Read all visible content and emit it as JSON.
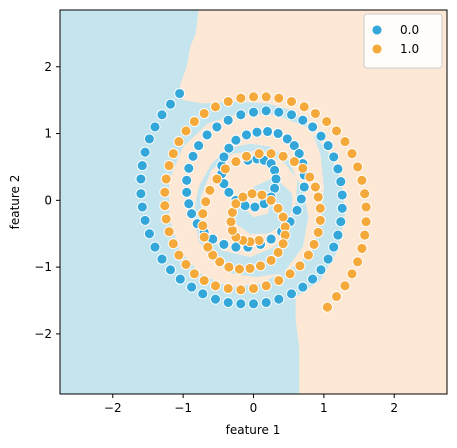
{
  "chart_data": {
    "type": "scatter",
    "title": "",
    "xlabel": "feature 1",
    "ylabel": "feature 2",
    "xlim": [
      -2.75,
      2.75
    ],
    "ylim": [
      -2.9,
      2.85
    ],
    "xticks": [
      -2,
      -1,
      0,
      1,
      2
    ],
    "yticks": [
      -2,
      -1,
      0,
      1,
      2
    ],
    "xtick_labels": [
      "−2",
      "−1",
      "0",
      "1",
      "2"
    ],
    "ytick_labels": [
      "−2",
      "−1",
      "0",
      "1",
      "2"
    ],
    "grid": false,
    "legend_position": "top-right",
    "decision_regions": {
      "description_colors": {
        "0.0": "#c5e5ee",
        "1.0": "#fde8d6"
      },
      "boundary": [
        [
          -0.78,
          2.85
        ],
        [
          -0.82,
          2.5
        ],
        [
          -0.9,
          2.3
        ],
        [
          -0.95,
          2.0
        ],
        [
          -1.05,
          1.7
        ],
        [
          -1.0,
          1.5
        ],
        [
          -0.7,
          1.45
        ],
        [
          -0.3,
          1.48
        ],
        [
          0.2,
          1.45
        ],
        [
          0.55,
          1.35
        ],
        [
          0.8,
          1.1
        ],
        [
          0.95,
          0.7
        ],
        [
          1.0,
          0.2
        ],
        [
          0.95,
          -0.3
        ],
        [
          0.85,
          -0.7
        ],
        [
          0.65,
          -0.95
        ],
        [
          0.35,
          -1.1
        ],
        [
          0.05,
          -1.15
        ],
        [
          -0.3,
          -1.1
        ],
        [
          -0.6,
          -0.9
        ],
        [
          -0.78,
          -0.6
        ],
        [
          -0.85,
          -0.2
        ],
        [
          -0.78,
          0.2
        ],
        [
          -0.6,
          0.55
        ],
        [
          -0.35,
          0.78
        ],
        [
          -0.05,
          0.85
        ],
        [
          0.25,
          0.8
        ],
        [
          0.5,
          0.6
        ],
        [
          0.62,
          0.3
        ],
        [
          0.6,
          -0.05
        ],
        [
          0.45,
          -0.35
        ],
        [
          0.2,
          -0.5
        ],
        [
          -0.05,
          -0.5
        ],
        [
          -0.25,
          -0.35
        ],
        [
          -0.28,
          -0.1
        ],
        [
          -0.1,
          0.1
        ],
        [
          0.1,
          0.15
        ],
        [
          0.25,
          0.0
        ],
        [
          0.2,
          -0.2
        ],
        [
          0.0,
          -0.25
        ],
        [
          -0.15,
          -0.1
        ],
        [
          0.0,
          0.2
        ],
        [
          0.3,
          0.35
        ],
        [
          0.55,
          0.1
        ],
        [
          0.55,
          -0.35
        ],
        [
          0.3,
          -0.7
        ],
        [
          -0.05,
          -0.85
        ],
        [
          -0.45,
          -0.75
        ],
        [
          -0.72,
          -0.4
        ],
        [
          -0.75,
          0.05
        ],
        [
          -0.6,
          0.45
        ],
        [
          -0.3,
          0.7
        ],
        [
          0.1,
          0.75
        ],
        [
          0.45,
          0.55
        ],
        [
          0.7,
          0.2
        ],
        [
          0.78,
          -0.25
        ],
        [
          0.7,
          -0.7
        ],
        [
          0.45,
          -1.05
        ],
        [
          0.1,
          -1.25
        ],
        [
          -0.35,
          -1.3
        ],
        [
          -0.75,
          -1.1
        ],
        [
          -1.05,
          -0.75
        ],
        [
          -1.2,
          -0.25
        ],
        [
          -1.2,
          0.3
        ],
        [
          -1.0,
          0.8
        ],
        [
          -0.65,
          1.15
        ],
        [
          -0.2,
          1.3
        ],
        [
          0.3,
          1.28
        ],
        [
          0.75,
          1.1
        ],
        [
          1.05,
          0.75
        ],
        [
          1.25,
          0.3
        ],
        [
          1.3,
          -0.2
        ],
        [
          1.2,
          -0.75
        ],
        [
          0.95,
          -1.2
        ],
        [
          0.6,
          -1.45
        ],
        [
          0.6,
          -1.8
        ],
        [
          0.65,
          -2.2
        ],
        [
          0.65,
          -2.9
        ]
      ]
    },
    "series": [
      {
        "name": "0.0",
        "color": "#33a7d9",
        "x": [
          -0.08,
          0.05,
          0.15,
          0.25,
          0.3,
          0.32,
          0.3,
          0.25,
          0.15,
          0.02,
          -0.12,
          -0.25,
          -0.35,
          -0.42,
          -0.45,
          -0.45,
          -0.42,
          -0.35,
          -0.25,
          -0.1,
          0.05,
          0.2,
          0.35,
          0.48,
          0.58,
          0.65,
          0.7,
          0.72,
          0.72,
          0.68,
          0.62,
          0.52,
          0.4,
          0.25,
          0.1,
          -0.08,
          -0.25,
          -0.42,
          -0.58,
          -0.7,
          -0.8,
          -0.88,
          -0.92,
          -0.95,
          -0.95,
          -0.92,
          -0.86,
          -0.78,
          -0.66,
          -0.52,
          -0.36,
          -0.18,
          0.0,
          0.18,
          0.36,
          0.54,
          0.7,
          0.84,
          0.96,
          1.06,
          1.14,
          1.2,
          1.24,
          1.26,
          1.26,
          1.24,
          1.2,
          1.14,
          1.06,
          0.96,
          0.84,
          0.7,
          0.54,
          0.36,
          0.18,
          0.0,
          -0.18,
          -0.36,
          -0.54,
          -0.72,
          -0.88,
          -1.04,
          -1.18,
          -1.3,
          -1.4,
          -1.48,
          -1.54,
          -1.58,
          -1.6,
          -1.6,
          -1.58,
          -1.54,
          -1.48,
          -1.4,
          -1.3,
          -1.18,
          -1.05
        ],
        "y": [
          0.6,
          0.62,
          0.6,
          0.55,
          0.45,
          0.32,
          0.18,
          0.05,
          -0.05,
          -0.1,
          -0.08,
          0.0,
          0.12,
          0.25,
          0.4,
          0.52,
          0.65,
          0.78,
          0.9,
          0.98,
          1.02,
          1.03,
          1.0,
          0.92,
          0.82,
          0.7,
          0.55,
          0.38,
          0.2,
          0.02,
          -0.15,
          -0.32,
          -0.47,
          -0.58,
          -0.66,
          -0.7,
          -0.7,
          -0.66,
          -0.58,
          -0.48,
          -0.35,
          -0.2,
          -0.05,
          0.12,
          0.3,
          0.48,
          0.66,
          0.82,
          0.98,
          1.1,
          1.2,
          1.28,
          1.32,
          1.34,
          1.32,
          1.28,
          1.2,
          1.1,
          0.96,
          0.82,
          0.65,
          0.47,
          0.28,
          0.08,
          -0.12,
          -0.32,
          -0.52,
          -0.7,
          -0.88,
          -1.04,
          -1.18,
          -1.3,
          -1.4,
          -1.48,
          -1.53,
          -1.55,
          -1.55,
          -1.53,
          -1.48,
          -1.4,
          -1.3,
          -1.18,
          -1.04,
          -0.88,
          -0.7,
          -0.5,
          -0.3,
          -0.1,
          0.1,
          0.32,
          0.52,
          0.72,
          0.92,
          1.1,
          1.28,
          1.44,
          1.6
        ]
      },
      {
        "name": "1.0",
        "color": "#f5a93b",
        "x": [
          0.08,
          -0.05,
          -0.15,
          -0.25,
          -0.3,
          -0.32,
          -0.3,
          -0.25,
          -0.15,
          -0.02,
          0.12,
          0.25,
          0.35,
          0.42,
          0.45,
          0.45,
          0.42,
          0.35,
          0.25,
          0.1,
          -0.05,
          -0.2,
          -0.35,
          -0.48,
          -0.58,
          -0.65,
          -0.7,
          -0.72,
          -0.72,
          -0.68,
          -0.62,
          -0.52,
          -0.4,
          -0.25,
          -0.1,
          0.08,
          0.25,
          0.42,
          0.58,
          0.7,
          0.8,
          0.88,
          0.92,
          0.95,
          0.95,
          0.92,
          0.86,
          0.78,
          0.66,
          0.52,
          0.36,
          0.18,
          0.0,
          -0.18,
          -0.36,
          -0.54,
          -0.7,
          -0.84,
          -0.96,
          -1.06,
          -1.14,
          -1.2,
          -1.24,
          -1.26,
          -1.26,
          -1.24,
          -1.2,
          -1.14,
          -1.06,
          -0.96,
          -0.84,
          -0.7,
          -0.54,
          -0.36,
          -0.18,
          0.0,
          0.18,
          0.36,
          0.54,
          0.72,
          0.88,
          1.04,
          1.18,
          1.3,
          1.4,
          1.48,
          1.54,
          1.58,
          1.6,
          1.6,
          1.58,
          1.54,
          1.48,
          1.4,
          1.3,
          1.18,
          1.05
        ],
        "y": [
          -0.6,
          -0.62,
          -0.6,
          -0.55,
          -0.45,
          -0.32,
          -0.18,
          -0.05,
          0.05,
          0.1,
          0.08,
          0.0,
          -0.12,
          -0.25,
          -0.4,
          -0.52,
          -0.65,
          -0.78,
          -0.9,
          -0.98,
          -1.02,
          -1.03,
          -1.0,
          -0.92,
          -0.82,
          -0.7,
          -0.55,
          -0.38,
          -0.2,
          -0.02,
          0.15,
          0.32,
          0.47,
          0.58,
          0.66,
          0.7,
          0.7,
          0.66,
          0.58,
          0.48,
          0.35,
          0.2,
          0.05,
          -0.12,
          -0.3,
          -0.48,
          -0.66,
          -0.82,
          -0.98,
          -1.1,
          -1.2,
          -1.28,
          -1.32,
          -1.34,
          -1.32,
          -1.28,
          -1.2,
          -1.1,
          -0.96,
          -0.82,
          -0.65,
          -0.47,
          -0.28,
          -0.08,
          0.12,
          0.32,
          0.52,
          0.7,
          0.88,
          1.04,
          1.18,
          1.3,
          1.4,
          1.48,
          1.53,
          1.55,
          1.55,
          1.53,
          1.48,
          1.4,
          1.3,
          1.18,
          1.04,
          0.88,
          0.7,
          0.5,
          0.3,
          0.1,
          -0.1,
          -0.32,
          -0.52,
          -0.72,
          -0.92,
          -1.1,
          -1.28,
          -1.44,
          -1.6
        ]
      }
    ]
  }
}
